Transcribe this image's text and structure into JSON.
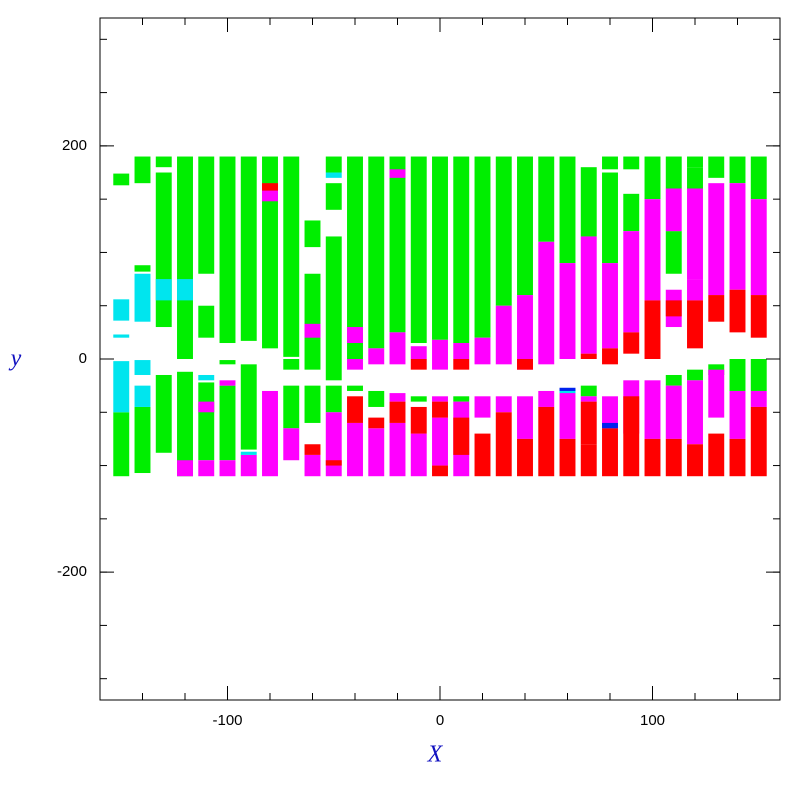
{
  "chart_data": {
    "type": "stripes",
    "xlabel": "X",
    "ylabel": "y",
    "xlim": [
      -160,
      160
    ],
    "ylim": [
      -320,
      320
    ],
    "xticks": [
      -100,
      0,
      100
    ],
    "yticks": [
      -200,
      0,
      200
    ],
    "xminorticks": [
      -160,
      -140,
      -120,
      -100,
      -80,
      -60,
      -40,
      -20,
      0,
      20,
      40,
      60,
      80,
      100,
      120,
      140,
      160
    ],
    "yminorticks": [
      -300,
      -250,
      -200,
      -150,
      -100,
      -50,
      0,
      50,
      100,
      150,
      200,
      250,
      300
    ],
    "stripe_width": 7.5,
    "series": [
      {
        "color": "#00ee00",
        "segments": [
          [
            -150,
            163,
            174
          ],
          [
            -150,
            -110,
            -50
          ],
          [
            -140,
            165,
            190
          ],
          [
            -140,
            82,
            88
          ],
          [
            -140,
            -107,
            -45
          ],
          [
            -130,
            180,
            190
          ],
          [
            -130,
            30,
            175
          ],
          [
            -130,
            -88,
            -15
          ],
          [
            -120,
            0,
            190
          ],
          [
            -120,
            -110,
            -12
          ],
          [
            -110,
            80,
            190
          ],
          [
            -110,
            20,
            50
          ],
          [
            -110,
            -95,
            -22
          ],
          [
            -100,
            15,
            190
          ],
          [
            -100,
            -5,
            -1
          ],
          [
            -100,
            -95,
            -25
          ],
          [
            -90,
            17,
            190
          ],
          [
            -90,
            -85,
            -5
          ],
          [
            -80,
            10,
            190
          ],
          [
            -70,
            2,
            190
          ],
          [
            -70,
            -10,
            0
          ],
          [
            -70,
            -65,
            -25
          ],
          [
            -60,
            105,
            130
          ],
          [
            -60,
            -10,
            80
          ],
          [
            -60,
            -60,
            -25
          ],
          [
            -50,
            175,
            190
          ],
          [
            -50,
            140,
            165
          ],
          [
            -50,
            -20,
            115
          ],
          [
            -50,
            -50,
            -25
          ],
          [
            -40,
            0,
            190
          ],
          [
            -40,
            -30,
            -25
          ],
          [
            -30,
            10,
            190
          ],
          [
            -30,
            -45,
            -30
          ],
          [
            -20,
            25,
            190
          ],
          [
            -10,
            15,
            190
          ],
          [
            -10,
            -40,
            -35
          ],
          [
            0,
            18,
            190
          ],
          [
            10,
            15,
            190
          ],
          [
            10,
            -40,
            -35
          ],
          [
            20,
            20,
            190
          ],
          [
            30,
            50,
            190
          ],
          [
            40,
            60,
            190
          ],
          [
            50,
            110,
            190
          ],
          [
            60,
            90,
            190
          ],
          [
            70,
            115,
            180
          ],
          [
            70,
            -35,
            -25
          ],
          [
            80,
            178,
            190
          ],
          [
            80,
            90,
            175
          ],
          [
            90,
            178,
            190
          ],
          [
            90,
            120,
            155
          ],
          [
            100,
            150,
            190
          ],
          [
            110,
            160,
            190
          ],
          [
            110,
            80,
            120
          ],
          [
            110,
            -25,
            -15
          ],
          [
            120,
            180,
            190
          ],
          [
            120,
            160,
            180
          ],
          [
            120,
            -20,
            -10
          ],
          [
            130,
            170,
            190
          ],
          [
            130,
            -15,
            -5
          ],
          [
            140,
            165,
            190
          ],
          [
            140,
            -30,
            0
          ],
          [
            150,
            150,
            190
          ],
          [
            150,
            -30,
            0
          ]
        ]
      },
      {
        "color": "#ff00ff",
        "segments": [
          [
            -120,
            -110,
            -95
          ],
          [
            -110,
            -110,
            -95
          ],
          [
            -110,
            -50,
            -40
          ],
          [
            -100,
            -25,
            -20
          ],
          [
            -100,
            -110,
            -95
          ],
          [
            -90,
            -110,
            -90
          ],
          [
            -80,
            148,
            160
          ],
          [
            -80,
            -110,
            -30
          ],
          [
            -70,
            -95,
            -65
          ],
          [
            -60,
            20,
            33
          ],
          [
            -60,
            -110,
            -90
          ],
          [
            -50,
            -110,
            -50
          ],
          [
            -40,
            15,
            30
          ],
          [
            -40,
            -10,
            0
          ],
          [
            -40,
            -110,
            -60
          ],
          [
            -30,
            -5,
            10
          ],
          [
            -30,
            -110,
            -65
          ],
          [
            -20,
            170,
            178
          ],
          [
            -20,
            -5,
            25
          ],
          [
            -20,
            -40,
            -32
          ],
          [
            -20,
            -110,
            -60
          ],
          [
            -10,
            0,
            12
          ],
          [
            -10,
            -110,
            -70
          ],
          [
            0,
            -10,
            18
          ],
          [
            0,
            -40,
            -35
          ],
          [
            0,
            -100,
            -55
          ],
          [
            10,
            0,
            15
          ],
          [
            10,
            -110,
            -40
          ],
          [
            20,
            -5,
            20
          ],
          [
            20,
            -55,
            -35
          ],
          [
            30,
            -5,
            50
          ],
          [
            30,
            -50,
            -35
          ],
          [
            40,
            -10,
            60
          ],
          [
            40,
            -75,
            -35
          ],
          [
            50,
            -5,
            110
          ],
          [
            50,
            -45,
            -30
          ],
          [
            60,
            0,
            90
          ],
          [
            60,
            -75,
            -30
          ],
          [
            70,
            5,
            115
          ],
          [
            70,
            -40,
            -35
          ],
          [
            80,
            10,
            90
          ],
          [
            80,
            -65,
            -35
          ],
          [
            90,
            25,
            120
          ],
          [
            90,
            -70,
            -20
          ],
          [
            100,
            55,
            150
          ],
          [
            100,
            -75,
            -20
          ],
          [
            110,
            120,
            160
          ],
          [
            110,
            30,
            65
          ],
          [
            110,
            -75,
            -25
          ],
          [
            120,
            75,
            160
          ],
          [
            120,
            55,
            75
          ],
          [
            120,
            -80,
            -20
          ],
          [
            130,
            60,
            165
          ],
          [
            130,
            -55,
            -10
          ],
          [
            140,
            65,
            165
          ],
          [
            140,
            -75,
            -30
          ],
          [
            150,
            60,
            150
          ],
          [
            150,
            -45,
            -30
          ]
        ]
      },
      {
        "color": "#ff0000",
        "segments": [
          [
            -80,
            158,
            165
          ],
          [
            -60,
            -90,
            -80
          ],
          [
            -50,
            -100,
            -95
          ],
          [
            -40,
            -60,
            -35
          ],
          [
            -30,
            -65,
            -55
          ],
          [
            -20,
            -60,
            -40
          ],
          [
            -10,
            -10,
            0
          ],
          [
            -10,
            -70,
            -45
          ],
          [
            0,
            -55,
            -40
          ],
          [
            0,
            -110,
            -100
          ],
          [
            10,
            -10,
            0
          ],
          [
            10,
            -90,
            -55
          ],
          [
            20,
            -110,
            -70
          ],
          [
            30,
            -110,
            -50
          ],
          [
            40,
            -10,
            0
          ],
          [
            40,
            -110,
            -75
          ],
          [
            50,
            -110,
            -45
          ],
          [
            60,
            -110,
            -75
          ],
          [
            70,
            0,
            5
          ],
          [
            70,
            -80,
            -40
          ],
          [
            70,
            -110,
            -80
          ],
          [
            80,
            -5,
            10
          ],
          [
            80,
            -110,
            -65
          ],
          [
            90,
            5,
            25
          ],
          [
            90,
            -110,
            -35
          ],
          [
            100,
            0,
            55
          ],
          [
            100,
            -110,
            -75
          ],
          [
            110,
            40,
            55
          ],
          [
            110,
            -110,
            -75
          ],
          [
            120,
            10,
            55
          ],
          [
            120,
            -110,
            -80
          ],
          [
            130,
            35,
            60
          ],
          [
            130,
            -110,
            -70
          ],
          [
            140,
            25,
            65
          ],
          [
            140,
            -110,
            -75
          ],
          [
            150,
            20,
            60
          ],
          [
            150,
            -110,
            -45
          ]
        ]
      },
      {
        "color": "#00e5ee",
        "segments": [
          [
            -150,
            36,
            56
          ],
          [
            -150,
            20,
            23
          ],
          [
            -150,
            -50,
            -2
          ],
          [
            -140,
            35,
            80
          ],
          [
            -140,
            -15,
            -1
          ],
          [
            -140,
            -45,
            -25
          ],
          [
            -130,
            55,
            75
          ],
          [
            -120,
            55,
            75
          ],
          [
            -110,
            -20,
            -15
          ],
          [
            -90,
            -90,
            -87
          ],
          [
            -50,
            170,
            175
          ],
          [
            60,
            -32,
            -28
          ]
        ]
      },
      {
        "color": "#0022ee",
        "segments": [
          [
            60,
            -30,
            -27
          ],
          [
            80,
            -65,
            -60
          ]
        ]
      }
    ]
  }
}
